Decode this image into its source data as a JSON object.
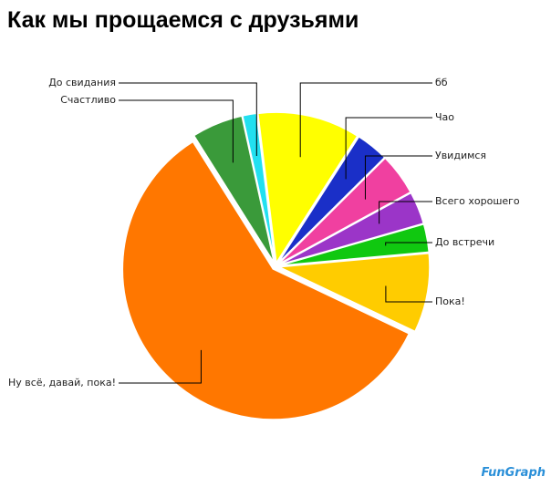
{
  "chart_data": {
    "type": "pie",
    "title": "Как мы прощаемся с друзьями",
    "categories": [
      "бб",
      "Чао",
      "Увидимся",
      "Всего хорошего",
      "До встречи",
      "Пока!",
      "Ну всё, давай, пока!",
      "Счастливо",
      "До свидания"
    ],
    "values": [
      11,
      3.5,
      4.5,
      3.5,
      3,
      8.5,
      59,
      5.5,
      1.5
    ],
    "colors": [
      "#ffff00",
      "#1a2fc8",
      "#f040a0",
      "#9b35c8",
      "#10c810",
      "#ffcc00",
      "#ff7700",
      "#3a9a3a",
      "#22e0f0"
    ],
    "watermark": "FunGraph"
  }
}
